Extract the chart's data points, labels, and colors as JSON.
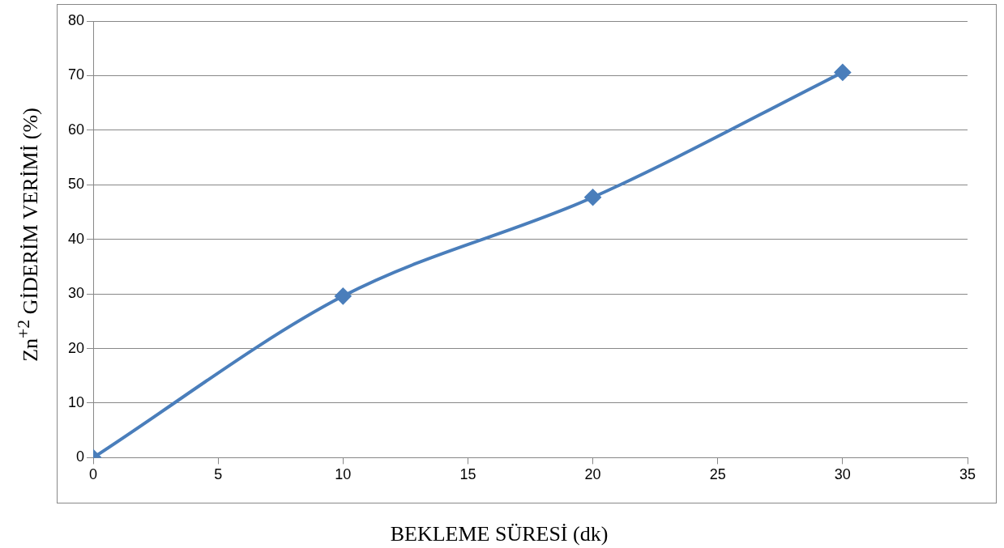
{
  "chart_data": {
    "type": "line",
    "xlabel": "BEKLEME SÜRESİ (dk)",
    "ylabel": "Zn$^{+2}$ GİDERİM VERİMİ (%)",
    "x": [
      0,
      10,
      20,
      30
    ],
    "series": [
      {
        "color": "#4a7ebb",
        "values": [
          0,
          29.6,
          47.7,
          70.6
        ]
      }
    ],
    "xlim": [
      0,
      35
    ],
    "xticks": [
      0,
      5,
      10,
      15,
      20,
      25,
      30,
      35
    ],
    "ylim": [
      0,
      80
    ],
    "yticks": [
      0,
      10,
      20,
      30,
      40,
      50,
      60,
      70,
      80
    ],
    "grid": "y",
    "legend": false,
    "marker": "diamond",
    "line_style": "solid"
  }
}
